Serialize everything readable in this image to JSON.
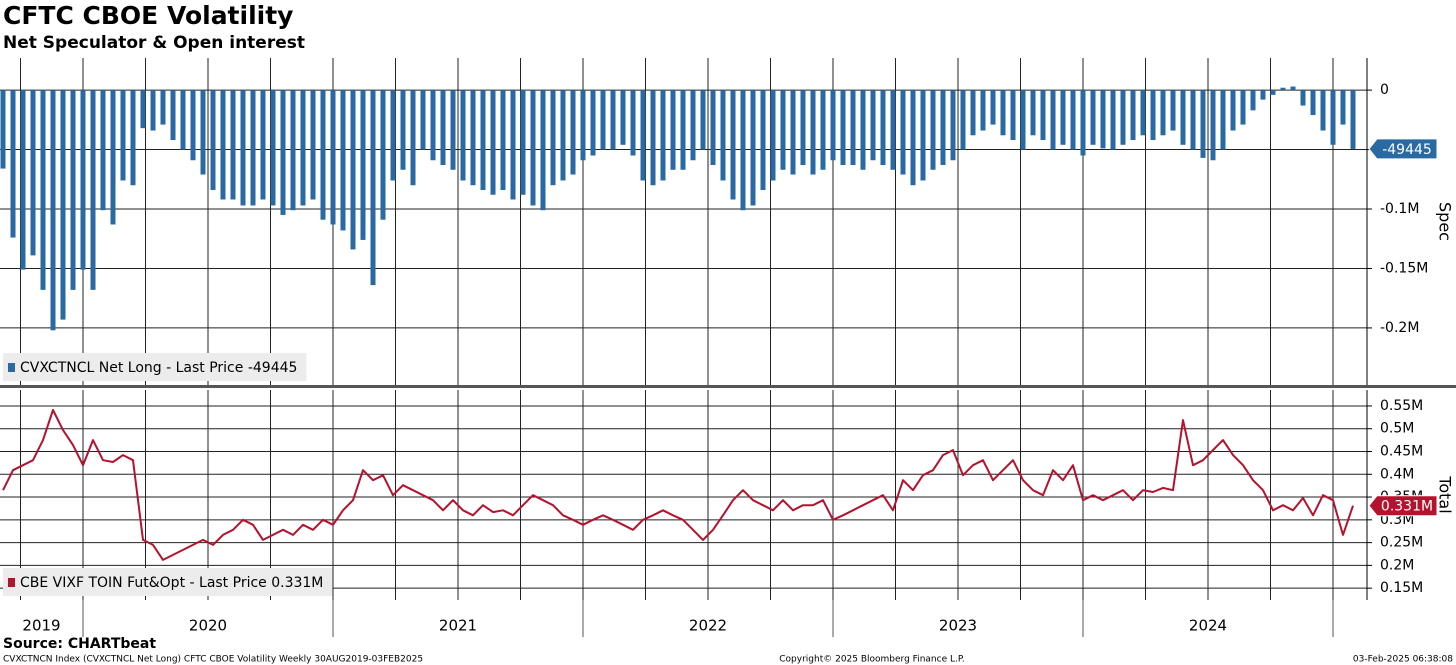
{
  "header": {
    "title": "CFTC CBOE Volatility",
    "subtitle": "Net Speculator & Open interest"
  },
  "footer": {
    "source": "Source: CHARTbeat",
    "description": "CVXCTNCN Index (CVXCTNCL Net Long) CFTC CBOE Volatility  Weekly 30AUG2019-03FEB2025",
    "copyright": "Copyright© 2025 Bloomberg Finance L.P.",
    "timestamp": "03-Feb-2025 06:38:08"
  },
  "chart_data": [
    {
      "type": "bar",
      "ylabel": "Spec",
      "grid": true,
      "legend": "lower left",
      "xlim": [
        2019.668,
        2025.136
      ],
      "ylim": [
        -248000,
        27000
      ],
      "yticks": [
        0,
        {
          "value": -50000,
          "label": null
        },
        {
          "value": -100000,
          "label": "-0.1M"
        },
        {
          "value": -150000,
          "label": "-0.15M"
        },
        {
          "value": -200000,
          "label": "-0.2M"
        }
      ],
      "last_price_tag": -49445,
      "x": [
        2019.68,
        2019.72,
        2019.76,
        2019.8,
        2019.84,
        2019.88,
        2019.92,
        2019.96,
        2020,
        2020.04,
        2020.08,
        2020.12,
        2020.16,
        2020.2,
        2020.24,
        2020.28,
        2020.32,
        2020.36,
        2020.4,
        2020.44,
        2020.48,
        2020.52,
        2020.56,
        2020.6,
        2020.64,
        2020.68,
        2020.72,
        2020.76,
        2020.8,
        2020.84,
        2020.88,
        2020.92,
        2020.96,
        2021,
        2021.04,
        2021.08,
        2021.12,
        2021.16,
        2021.2,
        2021.24,
        2021.28,
        2021.32,
        2021.36,
        2021.4,
        2021.44,
        2021.48,
        2021.52,
        2021.56,
        2021.6,
        2021.64,
        2021.68,
        2021.72,
        2021.76,
        2021.8,
        2021.84,
        2021.88,
        2021.92,
        2021.96,
        2022,
        2022.04,
        2022.08,
        2022.12,
        2022.16,
        2022.2,
        2022.24,
        2022.28,
        2022.32,
        2022.36,
        2022.4,
        2022.44,
        2022.48,
        2022.52,
        2022.56,
        2022.6,
        2022.64,
        2022.68,
        2022.72,
        2022.76,
        2022.8,
        2022.84,
        2022.88,
        2022.92,
        2022.96,
        2023,
        2023.04,
        2023.08,
        2023.12,
        2023.16,
        2023.2,
        2023.24,
        2023.28,
        2023.32,
        2023.36,
        2023.4,
        2023.44,
        2023.48,
        2023.52,
        2023.56,
        2023.6,
        2023.64,
        2023.68,
        2023.72,
        2023.76,
        2023.8,
        2023.84,
        2023.88,
        2023.92,
        2023.96,
        2024,
        2024.04,
        2024.08,
        2024.12,
        2024.16,
        2024.2,
        2024.24,
        2024.28,
        2024.32,
        2024.36,
        2024.4,
        2024.44,
        2024.48,
        2024.52,
        2024.56,
        2024.6,
        2024.64,
        2024.68,
        2024.72,
        2024.76,
        2024.8,
        2024.84,
        2024.88,
        2024.92,
        2024.96,
        2025,
        2025.04,
        2025.08
      ],
      "series": [
        {
          "name": "CVXCTNCL Net Long - Last Price -49445",
          "color": "#2a6aa3",
          "values": [
            -66000,
            -124000,
            -151000,
            -139000,
            -168000,
            -202000,
            -193000,
            -168000,
            -151000,
            -168000,
            -101000,
            -113000,
            -76000,
            -80000,
            -32000,
            -34000,
            -29000,
            -42000,
            -50000,
            -59000,
            -71000,
            -84000,
            -92000,
            -92000,
            -97000,
            -97000,
            -92000,
            -97000,
            -105000,
            -101000,
            -97000,
            -92000,
            -109000,
            -113000,
            -118000,
            -134000,
            -126000,
            -164000,
            -109000,
            -76000,
            -67000,
            -80000,
            -50000,
            -59000,
            -63000,
            -67000,
            -76000,
            -80000,
            -84000,
            -88000,
            -84000,
            -92000,
            -88000,
            -97000,
            -101000,
            -80000,
            -76000,
            -71000,
            -59000,
            -55000,
            -50000,
            -50000,
            -46000,
            -55000,
            -76000,
            -80000,
            -76000,
            -67000,
            -67000,
            -59000,
            -50000,
            -63000,
            -76000,
            -92000,
            -101000,
            -97000,
            -84000,
            -76000,
            -67000,
            -71000,
            -63000,
            -71000,
            -67000,
            -59000,
            -63000,
            -63000,
            -67000,
            -59000,
            -63000,
            -67000,
            -71000,
            -80000,
            -76000,
            -67000,
            -63000,
            -59000,
            -50000,
            -38000,
            -34000,
            -29000,
            -38000,
            -42000,
            -50000,
            -38000,
            -42000,
            -50000,
            -46000,
            -50000,
            -55000,
            -46000,
            -49000,
            -50000,
            -46000,
            -42000,
            -38000,
            -42000,
            -38000,
            -34000,
            -46000,
            -50000,
            -57000,
            -59000,
            -50000,
            -34000,
            -29000,
            -17000,
            -8000,
            -4000,
            2000,
            3000,
            -13000,
            -21000,
            -34000,
            -46000,
            -29000,
            -49445
          ]
        }
      ]
    },
    {
      "type": "line",
      "ylabel": "Total",
      "grid": true,
      "legend": "lower left",
      "xlim": [
        2019.668,
        2025.136
      ],
      "ylim": [
        124000,
        585000
      ],
      "yticks": [
        {
          "value": 150000,
          "label": "0.15M"
        },
        {
          "value": 200000,
          "label": "0.2M"
        },
        {
          "value": 250000,
          "label": "0.25M"
        },
        {
          "value": 300000,
          "label": "0.3M"
        },
        {
          "value": 350000,
          "label": "0.35M"
        },
        {
          "value": 400000,
          "label": "0.4M"
        },
        {
          "value": 450000,
          "label": "0.45M"
        },
        {
          "value": 500000,
          "label": "0.5M"
        },
        {
          "value": 550000,
          "label": "0.55M"
        }
      ],
      "xticks": [
        {
          "value": 2019,
          "label": "2019"
        },
        {
          "value": 2020,
          "label": "2020"
        },
        {
          "value": 2021,
          "label": "2021"
        },
        {
          "value": 2022,
          "label": "2022"
        },
        {
          "value": 2023,
          "label": "2023"
        },
        {
          "value": 2024,
          "label": "2024"
        },
        {
          "value": 2025,
          "label": null
        }
      ],
      "last_price_tag": {
        "value": 331000,
        "label": "0.331M"
      },
      "x": [
        2019.68,
        2019.72,
        2019.76,
        2019.8,
        2019.84,
        2019.88,
        2019.92,
        2019.96,
        2020,
        2020.04,
        2020.08,
        2020.12,
        2020.16,
        2020.2,
        2020.24,
        2020.28,
        2020.32,
        2020.36,
        2020.4,
        2020.44,
        2020.48,
        2020.52,
        2020.56,
        2020.6,
        2020.64,
        2020.68,
        2020.72,
        2020.76,
        2020.8,
        2020.84,
        2020.88,
        2020.92,
        2020.96,
        2021,
        2021.04,
        2021.08,
        2021.12,
        2021.16,
        2021.2,
        2021.24,
        2021.28,
        2021.32,
        2021.36,
        2021.4,
        2021.44,
        2021.48,
        2021.52,
        2021.56,
        2021.6,
        2021.64,
        2021.68,
        2021.72,
        2021.76,
        2021.8,
        2021.84,
        2021.88,
        2021.92,
        2021.96,
        2022,
        2022.04,
        2022.08,
        2022.12,
        2022.16,
        2022.2,
        2022.24,
        2022.28,
        2022.32,
        2022.36,
        2022.4,
        2022.44,
        2022.48,
        2022.52,
        2022.56,
        2022.6,
        2022.64,
        2022.68,
        2022.72,
        2022.76,
        2022.8,
        2022.84,
        2022.88,
        2022.92,
        2022.96,
        2023,
        2023.04,
        2023.08,
        2023.12,
        2023.16,
        2023.2,
        2023.24,
        2023.28,
        2023.32,
        2023.36,
        2023.4,
        2023.44,
        2023.48,
        2023.52,
        2023.56,
        2023.6,
        2023.64,
        2023.68,
        2023.72,
        2023.76,
        2023.8,
        2023.84,
        2023.88,
        2023.92,
        2023.96,
        2024,
        2024.04,
        2024.08,
        2024.12,
        2024.16,
        2024.2,
        2024.24,
        2024.28,
        2024.32,
        2024.36,
        2024.4,
        2024.44,
        2024.48,
        2024.52,
        2024.56,
        2024.6,
        2024.64,
        2024.68,
        2024.72,
        2024.76,
        2024.8,
        2024.84,
        2024.88,
        2024.92,
        2024.96,
        2025,
        2025.04,
        2025.08
      ],
      "series": [
        {
          "name": "CBE VIXF TOIN Fut&Opt - Last Price 0.331M",
          "color": "#b5122d",
          "values": [
            365000,
            409000,
            420000,
            431000,
            475000,
            541000,
            497000,
            464000,
            420000,
            475000,
            431000,
            427000,
            442000,
            431000,
            256000,
            245000,
            212000,
            223000,
            234000,
            245000,
            256000,
            245000,
            267000,
            278000,
            300000,
            289000,
            256000,
            267000,
            278000,
            267000,
            289000,
            278000,
            300000,
            289000,
            321000,
            343000,
            409000,
            387000,
            398000,
            354000,
            376000,
            365000,
            354000,
            343000,
            321000,
            343000,
            321000,
            310000,
            332000,
            317000,
            321000,
            310000,
            332000,
            354000,
            343000,
            332000,
            310000,
            300000,
            289000,
            300000,
            310000,
            300000,
            289000,
            278000,
            300000,
            310000,
            321000,
            310000,
            300000,
            278000,
            256000,
            278000,
            310000,
            343000,
            365000,
            343000,
            332000,
            321000,
            343000,
            321000,
            332000,
            332000,
            343000,
            300000,
            310000,
            321000,
            332000,
            343000,
            354000,
            321000,
            387000,
            365000,
            398000,
            409000,
            442000,
            453000,
            398000,
            420000,
            431000,
            387000,
            409000,
            431000,
            387000,
            365000,
            354000,
            409000,
            387000,
            420000,
            343000,
            354000,
            343000,
            354000,
            365000,
            343000,
            365000,
            361000,
            370000,
            365000,
            519000,
            420000,
            431000,
            453000,
            475000,
            442000,
            420000,
            387000,
            365000,
            321000,
            332000,
            321000,
            348000,
            310000,
            354000,
            343000,
            267000,
            331000
          ]
        }
      ]
    }
  ]
}
